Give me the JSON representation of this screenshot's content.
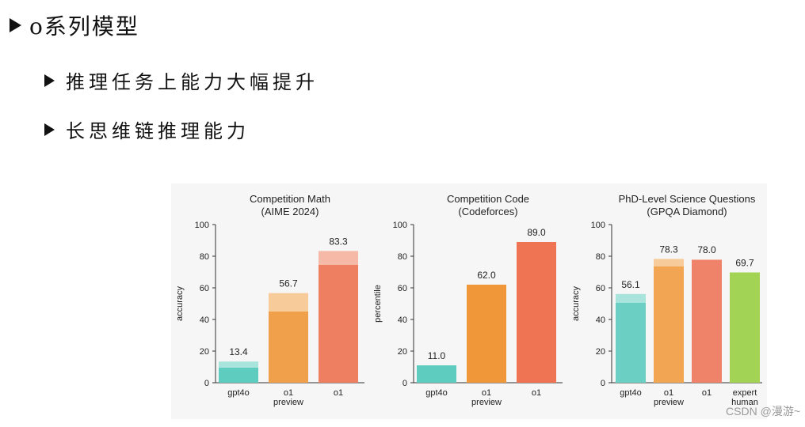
{
  "slide": {
    "title": "o系列模型",
    "bullets": [
      "推理任务上能力大幅提升",
      "长思维链推理能力"
    ]
  },
  "watermark": "CSDN @漫游~",
  "chart_data": [
    {
      "type": "bar",
      "title": "Competition Math",
      "subtitle": "(AIME 2024)",
      "ylabel": "accuracy",
      "ylim": [
        0,
        100
      ],
      "yticks": [
        0,
        20,
        40,
        60,
        80,
        100
      ],
      "categories": [
        "gpt4o",
        "o1\npreview",
        "o1"
      ],
      "series": [
        {
          "values": [
            9.5,
            45,
            74.5
          ]
        },
        {
          "values": [
            13.4,
            56.7,
            83.3
          ]
        }
      ],
      "labels": [
        "13.4",
        "56.7",
        "83.3"
      ],
      "colors": [
        "#5ecdc0",
        "#f0a04b",
        "#ef7f61"
      ],
      "light_colors": [
        "#a9e4dc",
        "#f8cc9a",
        "#f6b9a7"
      ]
    },
    {
      "type": "bar",
      "title": "Competition Code",
      "subtitle": "(Codeforces)",
      "ylabel": "percentile",
      "ylim": [
        0,
        100
      ],
      "yticks": [
        0,
        20,
        40,
        60,
        80,
        100
      ],
      "categories": [
        "gpt4o",
        "o1\npreview",
        "o1"
      ],
      "series": [
        {
          "values": [
            11.0,
            62.0,
            89.0
          ]
        },
        {
          "values": [
            11.0,
            62.0,
            89.0
          ]
        }
      ],
      "labels": [
        "11.0",
        "62.0",
        "89.0"
      ],
      "colors": [
        "#5ecdc0",
        "#f0973a",
        "#ef7453"
      ],
      "light_colors": [
        "#5ecdc0",
        "#f0973a",
        "#ef7453"
      ]
    },
    {
      "type": "bar",
      "title": "PhD-Level Science Questions",
      "subtitle": "(GPQA Diamond)",
      "ylabel": "accuracy",
      "ylim": [
        0,
        100
      ],
      "yticks": [
        0,
        20,
        40,
        60,
        80,
        100
      ],
      "categories": [
        "gpt4o",
        "o1\npreview",
        "o1",
        "expert\nhuman"
      ],
      "series": [
        {
          "values": [
            50.5,
            73.5,
            77.5,
            69.7
          ]
        },
        {
          "values": [
            56.1,
            78.3,
            78.0,
            69.7
          ]
        }
      ],
      "labels": [
        "56.1",
        "78.3",
        "78.0",
        "69.7"
      ],
      "colors": [
        "#6ccfc3",
        "#f2a552",
        "#ef836a",
        "#a3d354"
      ],
      "light_colors": [
        "#a9e4dc",
        "#f8cc9a",
        "#f6b9a7",
        "#a3d354"
      ]
    }
  ]
}
